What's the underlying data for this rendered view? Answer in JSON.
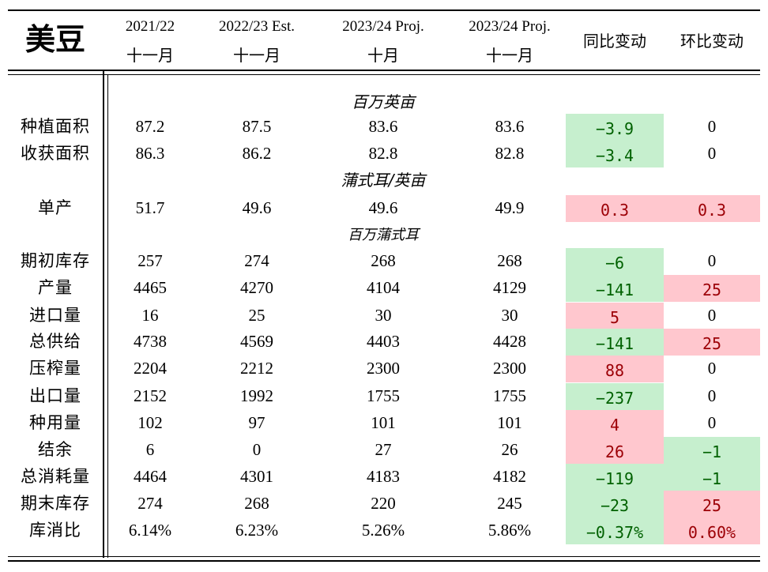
{
  "title": "美豆",
  "headers": [
    {
      "line1": "2021/22",
      "line2": "十一月"
    },
    {
      "line1": "2022/23 Est.",
      "line2": "十一月"
    },
    {
      "line1": "2023/24 Proj.",
      "line2": "十月"
    },
    {
      "line1": "2023/24 Proj.",
      "line2": "十一月"
    },
    {
      "line1": "同比变动",
      "line2": ""
    },
    {
      "line1": "环比变动",
      "line2": ""
    }
  ],
  "units": {
    "area": "百万英亩",
    "yield": "蒲式耳/英亩",
    "volume": "百万蒲式耳"
  },
  "rows": [
    {
      "label": "种植面积",
      "v": [
        "87.2",
        "87.5",
        "83.6",
        "83.6"
      ],
      "yoy": "−3.9",
      "yoy_color": "green",
      "mom": "0",
      "mom_color": "none"
    },
    {
      "label": "收获面积",
      "v": [
        "86.3",
        "86.2",
        "82.8",
        "82.8"
      ],
      "yoy": "−3.4",
      "yoy_color": "green",
      "mom": "0",
      "mom_color": "none"
    },
    {
      "label": "单产",
      "v": [
        "51.7",
        "49.6",
        "49.6",
        "49.9"
      ],
      "yoy": "0.3",
      "yoy_color": "red",
      "mom": "0.3",
      "mom_color": "red"
    },
    {
      "label": "期初库存",
      "v": [
        "257",
        "274",
        "268",
        "268"
      ],
      "yoy": "−6",
      "yoy_color": "green",
      "mom": "0",
      "mom_color": "none"
    },
    {
      "label": "产量",
      "v": [
        "4465",
        "4270",
        "4104",
        "4129"
      ],
      "yoy": "−141",
      "yoy_color": "green",
      "mom": "25",
      "mom_color": "red"
    },
    {
      "label": "进口量",
      "v": [
        "16",
        "25",
        "30",
        "30"
      ],
      "yoy": "5",
      "yoy_color": "red",
      "mom": "0",
      "mom_color": "none"
    },
    {
      "label": "总供给",
      "v": [
        "4738",
        "4569",
        "4403",
        "4428"
      ],
      "yoy": "−141",
      "yoy_color": "green",
      "mom": "25",
      "mom_color": "red"
    },
    {
      "label": "压榨量",
      "v": [
        "2204",
        "2212",
        "2300",
        "2300"
      ],
      "yoy": "88",
      "yoy_color": "red",
      "mom": "0",
      "mom_color": "none"
    },
    {
      "label": "出口量",
      "v": [
        "2152",
        "1992",
        "1755",
        "1755"
      ],
      "yoy": "−237",
      "yoy_color": "green",
      "mom": "0",
      "mom_color": "none"
    },
    {
      "label": "种用量",
      "v": [
        "102",
        "97",
        "101",
        "101"
      ],
      "yoy": "4",
      "yoy_color": "red",
      "mom": "0",
      "mom_color": "none"
    },
    {
      "label": "结余",
      "v": [
        "6",
        "0",
        "27",
        "26"
      ],
      "yoy": "26",
      "yoy_color": "red",
      "mom": "−1",
      "mom_color": "green"
    },
    {
      "label": "总消耗量",
      "v": [
        "4464",
        "4301",
        "4183",
        "4182"
      ],
      "yoy": "−119",
      "yoy_color": "green",
      "mom": "−1",
      "mom_color": "green"
    },
    {
      "label": "期末库存",
      "v": [
        "274",
        "268",
        "220",
        "245"
      ],
      "yoy": "−23",
      "yoy_color": "green",
      "mom": "25",
      "mom_color": "red"
    },
    {
      "label": "库消比",
      "v": [
        "6.14%",
        "6.23%",
        "5.26%",
        "5.86%"
      ],
      "yoy": "−0.37%",
      "yoy_color": "green",
      "mom": "0.60%",
      "mom_color": "red"
    }
  ]
}
